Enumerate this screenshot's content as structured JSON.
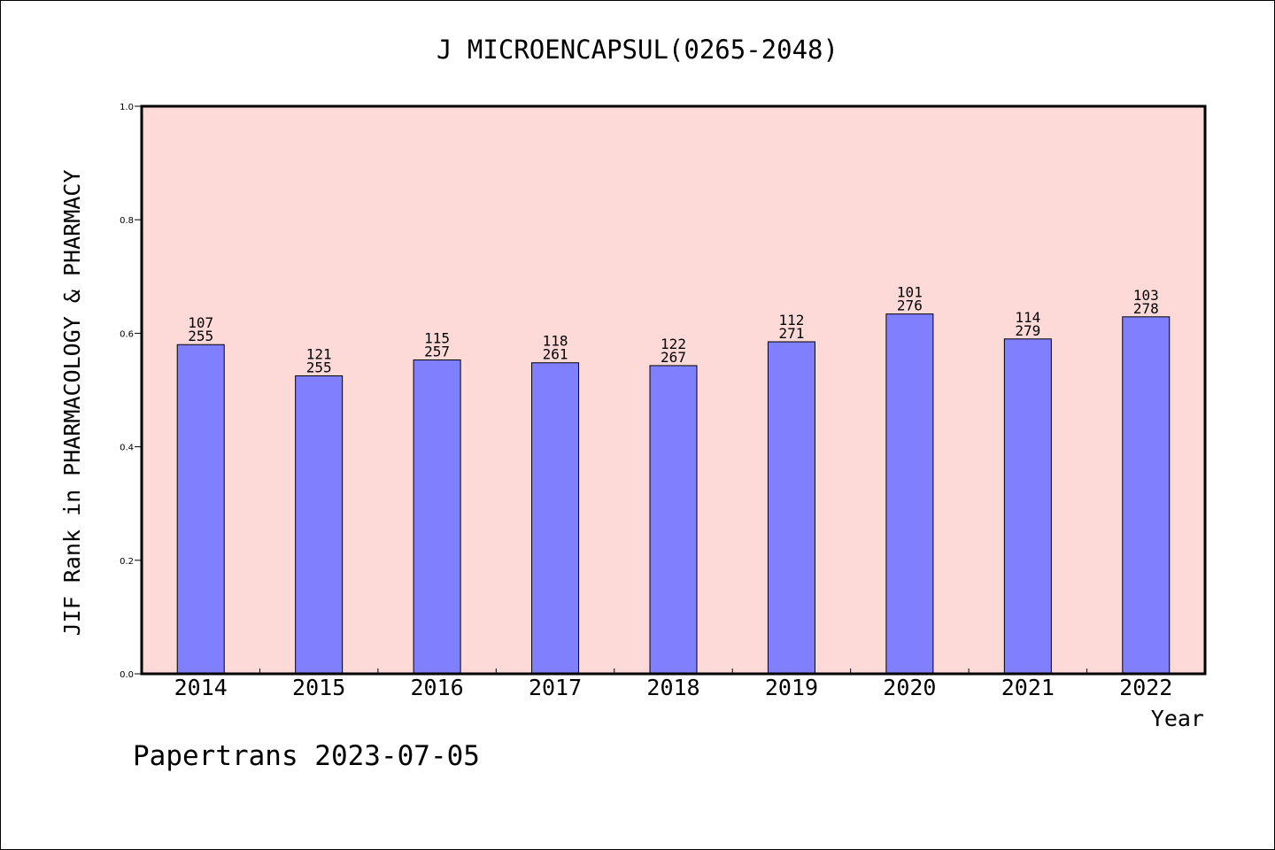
{
  "chart_data": {
    "type": "bar",
    "title": "J MICROENCAPSUL(0265-2048)",
    "xlabel": "Year",
    "ylabel": "JIF Rank in PHARMACOLOGY & PHARMACY",
    "ylim": [
      0,
      1.0
    ],
    "yticks": [
      "0.0",
      "0.2",
      "0.4",
      "0.6",
      "0.8",
      "1.0"
    ],
    "categories": [
      "2014",
      "2015",
      "2016",
      "2017",
      "2018",
      "2019",
      "2020",
      "2021",
      "2022"
    ],
    "values": [
      0.58,
      0.525,
      0.553,
      0.548,
      0.543,
      0.585,
      0.634,
      0.59,
      0.629
    ],
    "rank": [
      "107",
      "121",
      "115",
      "118",
      "122",
      "112",
      "101",
      "114",
      "103"
    ],
    "total": [
      "255",
      "255",
      "257",
      "261",
      "267",
      "271",
      "276",
      "279",
      "278"
    ],
    "grid": false,
    "bar_color": "#8080ff",
    "plot_background": "#fddad8"
  },
  "footer": "Papertrans 2023-07-05"
}
